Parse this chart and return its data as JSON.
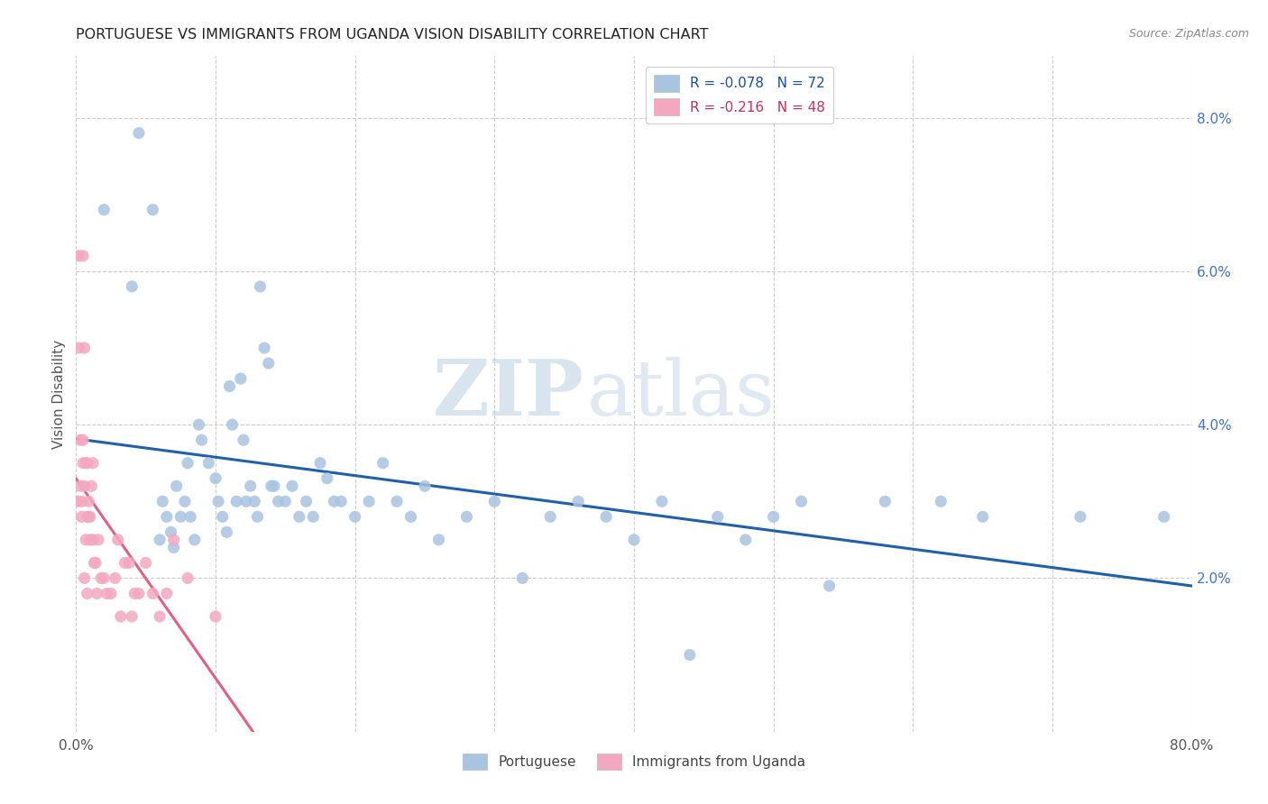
{
  "title": "PORTUGUESE VS IMMIGRANTS FROM UGANDA VISION DISABILITY CORRELATION CHART",
  "source": "Source: ZipAtlas.com",
  "ylabel": "Vision Disability",
  "right_ytick_vals": [
    0.02,
    0.04,
    0.06,
    0.08
  ],
  "xlim": [
    0.0,
    0.8
  ],
  "ylim": [
    0.0,
    0.088
  ],
  "blue_color": "#a8c4e0",
  "pink_color": "#f4a8c0",
  "trendline_blue": "#2060a8",
  "trendline_pink_solid": "#e06080",
  "trendline_pink_dashed": "#c0c0c0",
  "watermark_zip": "ZIP",
  "watermark_atlas": "atlas",
  "portuguese_x": [
    0.02,
    0.04,
    0.045,
    0.055,
    0.06,
    0.062,
    0.065,
    0.068,
    0.07,
    0.072,
    0.075,
    0.078,
    0.08,
    0.082,
    0.085,
    0.088,
    0.09,
    0.095,
    0.1,
    0.102,
    0.105,
    0.108,
    0.11,
    0.112,
    0.115,
    0.118,
    0.12,
    0.122,
    0.125,
    0.128,
    0.13,
    0.132,
    0.135,
    0.138,
    0.14,
    0.142,
    0.145,
    0.15,
    0.155,
    0.16,
    0.165,
    0.17,
    0.175,
    0.18,
    0.185,
    0.19,
    0.2,
    0.21,
    0.22,
    0.23,
    0.24,
    0.25,
    0.26,
    0.28,
    0.3,
    0.32,
    0.34,
    0.36,
    0.38,
    0.4,
    0.42,
    0.44,
    0.46,
    0.48,
    0.5,
    0.52,
    0.54,
    0.58,
    0.62,
    0.65,
    0.72,
    0.78
  ],
  "portuguese_y": [
    0.068,
    0.058,
    0.078,
    0.068,
    0.025,
    0.03,
    0.028,
    0.026,
    0.024,
    0.032,
    0.028,
    0.03,
    0.035,
    0.028,
    0.025,
    0.04,
    0.038,
    0.035,
    0.033,
    0.03,
    0.028,
    0.026,
    0.045,
    0.04,
    0.03,
    0.046,
    0.038,
    0.03,
    0.032,
    0.03,
    0.028,
    0.058,
    0.05,
    0.048,
    0.032,
    0.032,
    0.03,
    0.03,
    0.032,
    0.028,
    0.03,
    0.028,
    0.035,
    0.033,
    0.03,
    0.03,
    0.028,
    0.03,
    0.035,
    0.03,
    0.028,
    0.032,
    0.025,
    0.028,
    0.03,
    0.02,
    0.028,
    0.03,
    0.028,
    0.025,
    0.03,
    0.01,
    0.028,
    0.025,
    0.028,
    0.03,
    0.019,
    0.03,
    0.03,
    0.028,
    0.028,
    0.028
  ],
  "uganda_x": [
    0.001,
    0.002,
    0.002,
    0.003,
    0.003,
    0.004,
    0.004,
    0.005,
    0.005,
    0.005,
    0.006,
    0.006,
    0.006,
    0.007,
    0.007,
    0.008,
    0.008,
    0.008,
    0.009,
    0.009,
    0.01,
    0.01,
    0.011,
    0.012,
    0.012,
    0.013,
    0.014,
    0.015,
    0.016,
    0.018,
    0.02,
    0.022,
    0.025,
    0.028,
    0.03,
    0.032,
    0.035,
    0.038,
    0.04,
    0.042,
    0.045,
    0.05,
    0.055,
    0.06,
    0.065,
    0.07,
    0.08,
    0.1
  ],
  "uganda_y": [
    0.03,
    0.062,
    0.05,
    0.038,
    0.032,
    0.028,
    0.03,
    0.035,
    0.038,
    0.062,
    0.02,
    0.032,
    0.05,
    0.035,
    0.025,
    0.028,
    0.018,
    0.035,
    0.03,
    0.028,
    0.028,
    0.025,
    0.032,
    0.025,
    0.035,
    0.022,
    0.022,
    0.018,
    0.025,
    0.02,
    0.02,
    0.018,
    0.018,
    0.02,
    0.025,
    0.015,
    0.022,
    0.022,
    0.015,
    0.018,
    0.018,
    0.022,
    0.018,
    0.015,
    0.018,
    0.025,
    0.02,
    0.015
  ]
}
